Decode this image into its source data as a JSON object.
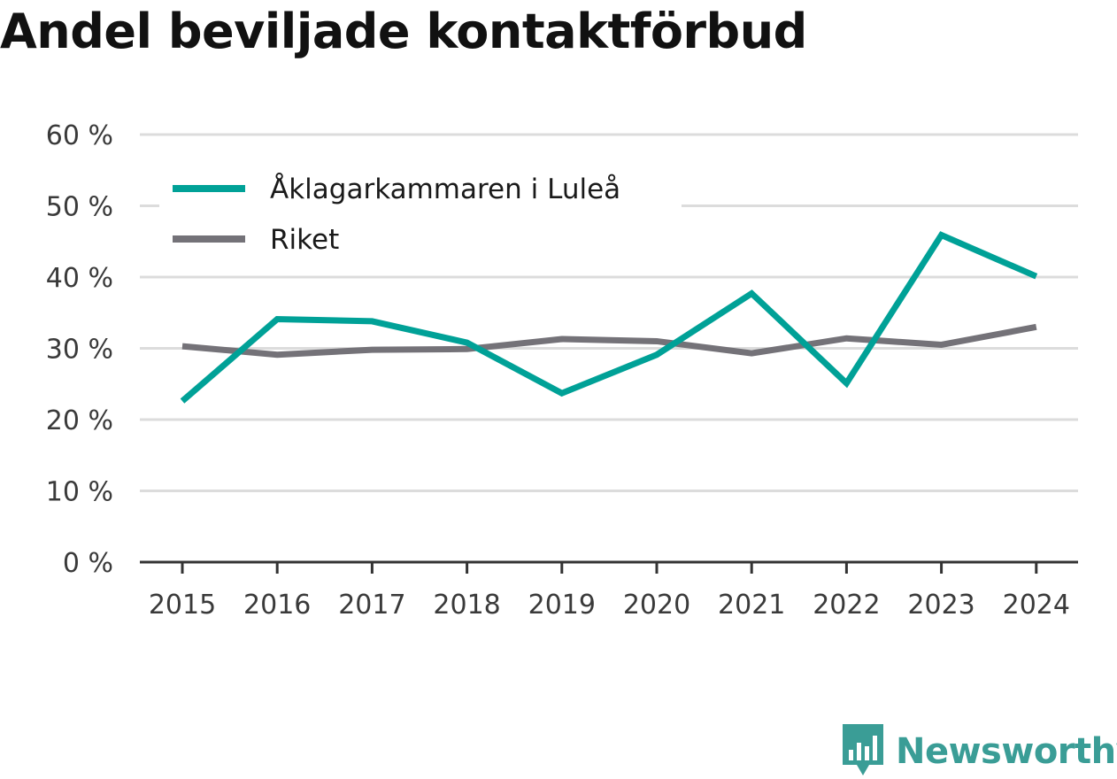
{
  "chart_data": {
    "type": "line",
    "title": "Andel beviljade kontaktförbud",
    "xlabel": "",
    "ylabel": "",
    "categories": [
      "2015",
      "2016",
      "2017",
      "2018",
      "2019",
      "2020",
      "2021",
      "2022",
      "2023",
      "2024"
    ],
    "series": [
      {
        "name": "Åklagarkammaren i Luleå",
        "color": "#00a197",
        "values": [
          22.6,
          34.1,
          33.8,
          30.8,
          23.7,
          29.1,
          37.7,
          25.1,
          45.9,
          40.1
        ]
      },
      {
        "name": "Riket",
        "color": "#747278",
        "values": [
          30.3,
          29.1,
          29.8,
          29.9,
          31.3,
          31.0,
          29.3,
          31.4,
          30.5,
          33.0
        ]
      }
    ],
    "ylim": [
      0,
      60
    ],
    "yticks": [
      0,
      10,
      20,
      30,
      40,
      50,
      60
    ],
    "ytick_labels": [
      "0 %",
      "10 %",
      "20 %",
      "30 %",
      "40 %",
      "50 %",
      "60 %"
    ],
    "grid": true,
    "legend_position": "top-left"
  },
  "brand": {
    "name": "Newsworthy",
    "color": "#3a9d96",
    "icon": "bar-chart-speech-bubble-icon"
  }
}
